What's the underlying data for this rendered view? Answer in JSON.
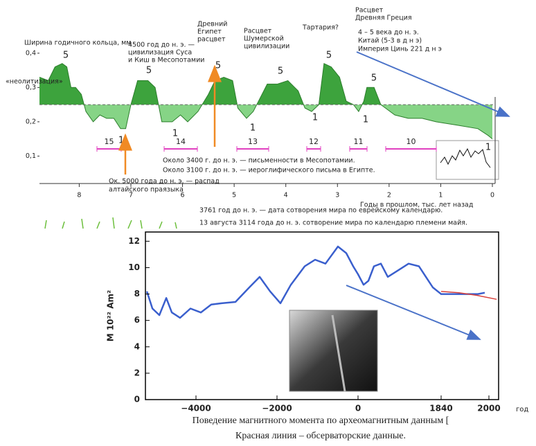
{
  "chart_data": [
    {
      "type": "area",
      "y_label": "Ширина годичного кольца, мм",
      "x_label": "Годы в прошлом, тыс. лет назад",
      "x": [
        8.77,
        8.6,
        8.47,
        8.33,
        8.24,
        8.16,
        8.07,
        7.96,
        7.87,
        7.73,
        7.6,
        7.47,
        7.33,
        7.2,
        7.1,
        7.0,
        6.87,
        6.67,
        6.53,
        6.4,
        6.2,
        6.04,
        5.9,
        5.7,
        5.5,
        5.37,
        5.2,
        5.03,
        4.93,
        4.76,
        4.63,
        4.36,
        4.16,
        3.96,
        3.76,
        3.63,
        3.5,
        3.36,
        3.26,
        3.12,
        2.96,
        2.83,
        2.69,
        2.59,
        2.49,
        2.43,
        2.29,
        2.16,
        1.89,
        1.63,
        1.36,
        1.09,
        0.68,
        0.28,
        0.08,
        0
      ],
      "values": [
        0.33,
        0.32,
        0.36,
        0.37,
        0.36,
        0.3,
        0.3,
        0.28,
        0.23,
        0.2,
        0.22,
        0.21,
        0.21,
        0.18,
        0.18,
        0.25,
        0.32,
        0.32,
        0.3,
        0.2,
        0.2,
        0.22,
        0.2,
        0.23,
        0.28,
        0.32,
        0.33,
        0.32,
        0.24,
        0.21,
        0.23,
        0.31,
        0.31,
        0.32,
        0.29,
        0.24,
        0.23,
        0.25,
        0.37,
        0.36,
        0.33,
        0.26,
        0.25,
        0.23,
        0.26,
        0.3,
        0.3,
        0.25,
        0.22,
        0.21,
        0.21,
        0.2,
        0.19,
        0.18,
        0.16,
        0.15
      ],
      "baseline": 0.25,
      "color": "#3da33d",
      "below_color": "#86d486",
      "xlim": [
        8.77,
        0
      ],
      "xticks": [
        8,
        7,
        6,
        5,
        4,
        3,
        2,
        1,
        0
      ],
      "ylim": [
        0.02,
        0.44
      ],
      "yticks": [
        {
          "value": 0.1,
          "label": "0,1"
        },
        {
          "value": 0.2,
          "label": "0,2"
        },
        {
          "value": 0.3,
          "label": "0,3"
        },
        {
          "value": 0.4,
          "label": "0,4"
        }
      ],
      "cycle_labels": [
        "5",
        "1",
        "5",
        "1",
        "5",
        "1",
        "5",
        "1",
        "5",
        "1",
        "5",
        "1"
      ],
      "periods": [
        "15",
        "14",
        "13",
        "12",
        "11",
        "10"
      ],
      "annotations": [
        [
          "«неолитизация»"
        ],
        [
          "4500 год до н. э. —",
          "цивилизация Суса",
          "и Киш в Месопотамии"
        ],
        [
          "Древний",
          "Египет",
          "расцвет"
        ],
        [
          "Расцвет",
          "Шумерской",
          "цивилизации"
        ],
        [
          "Тартария?"
        ],
        [
          "Расцвет",
          "Древняя Греция"
        ],
        [
          "4 – 5 века до н. э.",
          "Китай (5-3 в д н э)",
          "Империя Цинь  221 д н э"
        ],
        [
          "Около 3400 г. до н. э. —  письменности в Месопотамии.",
          "Около 3100 г. до н. э. — иероглифического письма в Египте."
        ],
        [
          "Ок. 5000 года до н. э. — распад",
          "алтайского праязыка"
        ],
        [
          "3761 год до н. э. — дата сотворения мира по еврейскому календарю.",
          "13 августа 3114 года до н. э. сотворение мира по календарю племени майя."
        ]
      ]
    },
    {
      "type": "line",
      "y_label": "M 10²² Am²",
      "x_label": "год",
      "series": [
        {
          "color": "#3a5fcd",
          "x": [
            -5214,
            -5077,
            -4906,
            -4735,
            -4598,
            -4393,
            -4137,
            -3880,
            -3624,
            -3368,
            -3026,
            -2684,
            -2427,
            -2171,
            -1915,
            -1658,
            -1316,
            -1060,
            -803,
            -496,
            -291,
            -120,
            0,
            123,
            230,
            353,
            506,
            660,
            890,
            1120,
            1349,
            1503,
            1656,
            1840,
            1893,
            1963,
            1986
          ],
          "values": [
            8.2,
            6.9,
            6.4,
            7.7,
            6.6,
            6.2,
            6.9,
            6.6,
            7.2,
            7.3,
            7.4,
            8.5,
            9.3,
            8.2,
            7.3,
            8.7,
            10.1,
            10.6,
            10.3,
            11.6,
            11.1,
            10.1,
            9.5,
            8.7,
            9.0,
            10.1,
            10.3,
            9.3,
            9.8,
            10.3,
            10.1,
            9.3,
            8.5,
            8.0,
            8.0,
            8.0,
            8.1
          ]
        },
        {
          "color": "#d9403a",
          "x": [
            1840,
            1900,
            1960,
            2040
          ],
          "values": [
            8.2,
            8.1,
            7.9,
            7.6
          ]
        }
      ],
      "xlim": [
        -5250,
        2050
      ],
      "xticks": [
        {
          "value": -4000,
          "label": "−4000"
        },
        {
          "value": -2000,
          "label": "−2000"
        },
        0,
        1840,
        2000
      ],
      "ylim": [
        0,
        12.7
      ],
      "yticks": [
        0,
        2,
        4,
        6,
        8,
        10,
        12
      ],
      "caption": [
        "Поведение магнитного момента по археомагнитным данным [",
        "Красная линия – обсерваторские данные."
      ]
    }
  ]
}
